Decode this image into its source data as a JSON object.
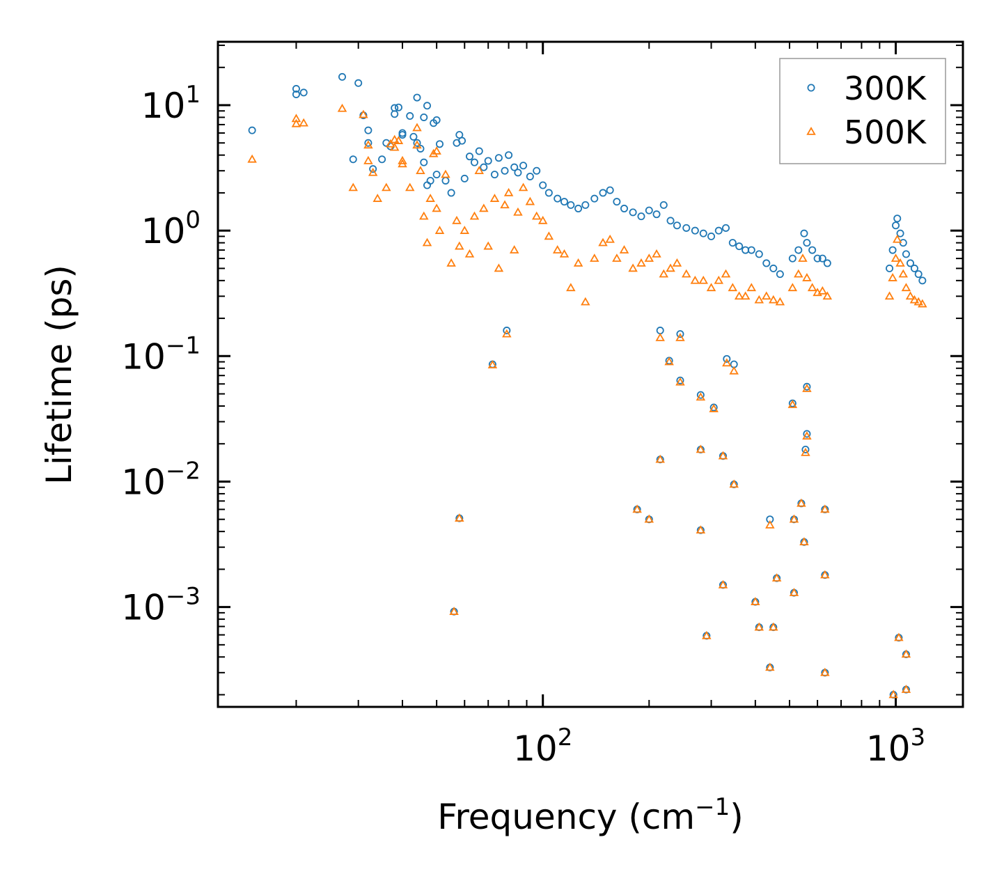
{
  "chart_data": {
    "type": "scatter",
    "title": "",
    "xlabel": {
      "base": "Frequency (cm",
      "exp": "−1",
      "close": ")"
    },
    "ylabel": "Lifetime (ps)",
    "xscale": "log",
    "yscale": "log",
    "xlim": [
      12,
      1550
    ],
    "ylim": [
      0.00016,
      32
    ],
    "x_ticks": [
      {
        "value": 100,
        "base": "10",
        "exp": "2"
      },
      {
        "value": 1000,
        "base": "10",
        "exp": "3"
      }
    ],
    "y_ticks": [
      {
        "value": 10,
        "base": "10",
        "exp": "1"
      },
      {
        "value": 1,
        "base": "10",
        "exp": "0"
      },
      {
        "value": 0.1,
        "base": "10",
        "exp": "−1"
      },
      {
        "value": 0.01,
        "base": "10",
        "exp": "−2"
      },
      {
        "value": 0.001,
        "base": "10",
        "exp": "−3"
      }
    ],
    "legend_position": "top-right",
    "series": [
      {
        "name": "300K",
        "marker": "circle",
        "color": "#1f77b4",
        "points": [
          [
            15,
            6.3
          ],
          [
            20,
            13.5
          ],
          [
            20,
            12.2
          ],
          [
            21,
            12.6
          ],
          [
            27,
            16.8
          ],
          [
            29,
            3.7
          ],
          [
            30,
            15
          ],
          [
            31,
            8.3
          ],
          [
            32,
            6.3
          ],
          [
            32,
            5.0
          ],
          [
            33,
            3.1
          ],
          [
            35,
            3.7
          ],
          [
            36,
            5.0
          ],
          [
            37,
            4.7
          ],
          [
            38,
            9.5
          ],
          [
            38,
            8.5
          ],
          [
            39,
            9.6
          ],
          [
            40,
            6.0
          ],
          [
            40,
            5.8
          ],
          [
            42,
            8.2
          ],
          [
            43,
            5.6
          ],
          [
            44,
            11.5
          ],
          [
            44,
            5.0
          ],
          [
            45,
            4.5
          ],
          [
            46,
            8.0
          ],
          [
            46,
            3.5
          ],
          [
            47,
            9.9
          ],
          [
            47,
            2.3
          ],
          [
            48,
            2.5
          ],
          [
            49,
            7.2
          ],
          [
            50,
            7.6
          ],
          [
            50,
            2.8
          ],
          [
            51,
            4.9
          ],
          [
            53,
            2.5
          ],
          [
            55,
            2.0
          ],
          [
            57,
            5.0
          ],
          [
            58,
            5.8
          ],
          [
            59,
            5.2
          ],
          [
            60,
            2.6
          ],
          [
            62,
            3.9
          ],
          [
            64,
            3.5
          ],
          [
            66,
            4.3
          ],
          [
            68,
            3.2
          ],
          [
            70,
            3.6
          ],
          [
            73,
            2.8
          ],
          [
            75,
            3.8
          ],
          [
            78,
            3.0
          ],
          [
            80,
            4.0
          ],
          [
            83,
            3.2
          ],
          [
            85,
            2.9
          ],
          [
            88,
            3.3
          ],
          [
            92,
            2.7
          ],
          [
            96,
            3.0
          ],
          [
            100,
            2.3
          ],
          [
            104,
            2.0
          ],
          [
            110,
            1.8
          ],
          [
            115,
            1.7
          ],
          [
            120,
            1.6
          ],
          [
            126,
            1.5
          ],
          [
            132,
            1.6
          ],
          [
            140,
            1.8
          ],
          [
            148,
            2.0
          ],
          [
            155,
            2.1
          ],
          [
            162,
            1.7
          ],
          [
            170,
            1.5
          ],
          [
            180,
            1.4
          ],
          [
            190,
            1.3
          ],
          [
            200,
            1.45
          ],
          [
            210,
            1.35
          ],
          [
            220,
            1.6
          ],
          [
            230,
            1.2
          ],
          [
            240,
            1.1
          ],
          [
            255,
            1.05
          ],
          [
            270,
            1.0
          ],
          [
            285,
            0.95
          ],
          [
            300,
            0.9
          ],
          [
            315,
            1.0
          ],
          [
            330,
            1.05
          ],
          [
            345,
            0.8
          ],
          [
            360,
            0.75
          ],
          [
            375,
            0.7
          ],
          [
            390,
            0.7
          ],
          [
            410,
            0.65
          ],
          [
            430,
            0.55
          ],
          [
            450,
            0.5
          ],
          [
            470,
            0.45
          ],
          [
            510,
            0.6
          ],
          [
            530,
            0.7
          ],
          [
            550,
            0.95
          ],
          [
            560,
            0.8
          ],
          [
            580,
            0.7
          ],
          [
            600,
            0.6
          ],
          [
            620,
            0.6
          ],
          [
            640,
            0.55
          ],
          [
            960,
            0.5
          ],
          [
            980,
            0.7
          ],
          [
            1000,
            1.1
          ],
          [
            1010,
            1.25
          ],
          [
            1030,
            0.95
          ],
          [
            1050,
            0.8
          ],
          [
            1070,
            0.65
          ],
          [
            1100,
            0.55
          ],
          [
            1130,
            0.5
          ],
          [
            1160,
            0.45
          ],
          [
            1190,
            0.4
          ],
          [
            58,
            0.0051
          ],
          [
            56,
            0.00092
          ],
          [
            72,
            0.086
          ],
          [
            79,
            0.16
          ],
          [
            185,
            0.006
          ],
          [
            200,
            0.005
          ],
          [
            215,
            0.015
          ],
          [
            215,
            0.16
          ],
          [
            228,
            0.092
          ],
          [
            245,
            0.064
          ],
          [
            245,
            0.15
          ],
          [
            280,
            0.049
          ],
          [
            280,
            0.018
          ],
          [
            280,
            0.0041
          ],
          [
            291,
            0.00059
          ],
          [
            305,
            0.039
          ],
          [
            324,
            0.016
          ],
          [
            324,
            0.0015
          ],
          [
            332,
            0.095
          ],
          [
            348,
            0.086
          ],
          [
            348,
            0.0095
          ],
          [
            400,
            0.0011
          ],
          [
            410,
            0.00069
          ],
          [
            440,
            0.005
          ],
          [
            440,
            0.00033
          ],
          [
            450,
            0.00069
          ],
          [
            460,
            0.0017
          ],
          [
            510,
            0.042
          ],
          [
            515,
            0.005
          ],
          [
            515,
            0.0013
          ],
          [
            540,
            0.0067
          ],
          [
            550,
            0.0033
          ],
          [
            560,
            0.057
          ],
          [
            560,
            0.024
          ],
          [
            555,
            0.018
          ],
          [
            630,
            0.006
          ],
          [
            630,
            0.0018
          ],
          [
            630,
            0.0003
          ],
          [
            985,
            0.0002
          ],
          [
            1020,
            0.00057
          ],
          [
            1070,
            0.00042
          ],
          [
            1070,
            0.00022
          ]
        ]
      },
      {
        "name": "500K",
        "marker": "triangle",
        "color": "#ff7f0e",
        "points": [
          [
            15,
            3.7
          ],
          [
            20,
            7.8
          ],
          [
            20,
            7.1
          ],
          [
            21,
            7.2
          ],
          [
            27,
            9.4
          ],
          [
            29,
            2.2
          ],
          [
            31,
            8.4
          ],
          [
            32,
            4.8
          ],
          [
            32,
            3.6
          ],
          [
            33,
            2.9
          ],
          [
            34,
            1.8
          ],
          [
            36,
            2.2
          ],
          [
            37,
            4.9
          ],
          [
            38,
            5.3
          ],
          [
            38,
            4.6
          ],
          [
            39,
            5.2
          ],
          [
            40,
            3.6
          ],
          [
            40,
            3.4
          ],
          [
            42,
            2.2
          ],
          [
            44,
            6.6
          ],
          [
            44,
            4.8
          ],
          [
            45,
            3.0
          ],
          [
            46,
            1.3
          ],
          [
            47,
            0.8
          ],
          [
            48,
            1.8
          ],
          [
            49,
            4.1
          ],
          [
            50,
            4.3
          ],
          [
            50,
            1.5
          ],
          [
            51,
            1.0
          ],
          [
            53,
            2.8
          ],
          [
            55,
            0.55
          ],
          [
            57,
            1.2
          ],
          [
            58,
            0.75
          ],
          [
            60,
            1.0
          ],
          [
            62,
            0.65
          ],
          [
            64,
            1.3
          ],
          [
            66,
            3.0
          ],
          [
            68,
            1.5
          ],
          [
            70,
            0.75
          ],
          [
            73,
            1.8
          ],
          [
            75,
            0.5
          ],
          [
            78,
            1.6
          ],
          [
            80,
            2.0
          ],
          [
            83,
            0.7
          ],
          [
            85,
            1.4
          ],
          [
            88,
            2.2
          ],
          [
            92,
            1.7
          ],
          [
            96,
            1.3
          ],
          [
            100,
            1.2
          ],
          [
            104,
            0.9
          ],
          [
            110,
            0.7
          ],
          [
            115,
            0.65
          ],
          [
            120,
            0.35
          ],
          [
            126,
            0.55
          ],
          [
            132,
            0.27
          ],
          [
            140,
            0.6
          ],
          [
            148,
            0.8
          ],
          [
            155,
            0.85
          ],
          [
            162,
            0.6
          ],
          [
            170,
            0.7
          ],
          [
            180,
            0.5
          ],
          [
            190,
            0.55
          ],
          [
            200,
            0.6
          ],
          [
            210,
            0.65
          ],
          [
            220,
            0.45
          ],
          [
            230,
            0.5
          ],
          [
            240,
            0.55
          ],
          [
            255,
            0.45
          ],
          [
            270,
            0.4
          ],
          [
            285,
            0.4
          ],
          [
            300,
            0.35
          ],
          [
            315,
            0.4
          ],
          [
            330,
            0.45
          ],
          [
            345,
            0.35
          ],
          [
            360,
            0.3
          ],
          [
            375,
            0.3
          ],
          [
            390,
            0.35
          ],
          [
            410,
            0.28
          ],
          [
            430,
            0.3
          ],
          [
            450,
            0.28
          ],
          [
            470,
            0.27
          ],
          [
            510,
            0.35
          ],
          [
            530,
            0.45
          ],
          [
            545,
            0.6
          ],
          [
            560,
            0.42
          ],
          [
            580,
            0.35
          ],
          [
            600,
            0.32
          ],
          [
            620,
            0.33
          ],
          [
            640,
            0.3
          ],
          [
            960,
            0.3
          ],
          [
            980,
            0.42
          ],
          [
            1000,
            0.6
          ],
          [
            1010,
            0.85
          ],
          [
            1030,
            0.55
          ],
          [
            1050,
            0.45
          ],
          [
            1070,
            0.35
          ],
          [
            1100,
            0.3
          ],
          [
            1130,
            0.28
          ],
          [
            1160,
            0.27
          ],
          [
            1190,
            0.26
          ],
          [
            58,
            0.0051
          ],
          [
            56,
            0.00092
          ],
          [
            72,
            0.085
          ],
          [
            79,
            0.15
          ],
          [
            185,
            0.006
          ],
          [
            200,
            0.005
          ],
          [
            215,
            0.015
          ],
          [
            215,
            0.14
          ],
          [
            228,
            0.09
          ],
          [
            245,
            0.062
          ],
          [
            245,
            0.14
          ],
          [
            280,
            0.047
          ],
          [
            280,
            0.018
          ],
          [
            280,
            0.0041
          ],
          [
            291,
            0.00059
          ],
          [
            305,
            0.038
          ],
          [
            324,
            0.016
          ],
          [
            324,
            0.0015
          ],
          [
            332,
            0.088
          ],
          [
            348,
            0.076
          ],
          [
            348,
            0.0095
          ],
          [
            400,
            0.0011
          ],
          [
            410,
            0.00069
          ],
          [
            440,
            0.0045
          ],
          [
            440,
            0.00033
          ],
          [
            450,
            0.00069
          ],
          [
            460,
            0.0017
          ],
          [
            510,
            0.041
          ],
          [
            515,
            0.005
          ],
          [
            515,
            0.0013
          ],
          [
            540,
            0.0067
          ],
          [
            550,
            0.0033
          ],
          [
            560,
            0.055
          ],
          [
            560,
            0.023
          ],
          [
            555,
            0.017
          ],
          [
            630,
            0.006
          ],
          [
            630,
            0.0018
          ],
          [
            630,
            0.0003
          ],
          [
            985,
            0.0002
          ],
          [
            1020,
            0.00057
          ],
          [
            1070,
            0.00042
          ],
          [
            1070,
            0.00022
          ]
        ]
      }
    ]
  }
}
